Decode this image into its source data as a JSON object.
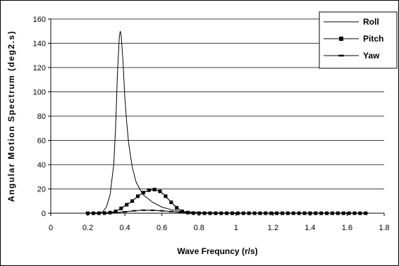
{
  "chart_data": {
    "type": "line",
    "title": "",
    "xlabel": "Wave Frequncy (r/s)",
    "ylabel": "Angular Motion Spectrum (deg2.s)",
    "xlim": [
      0,
      1.8
    ],
    "ylim": [
      0,
      160
    ],
    "xticks": [
      0,
      0.2,
      0.4,
      0.6,
      0.8,
      1,
      1.2,
      1.4,
      1.6,
      1.8
    ],
    "xtick_labels": [
      "0",
      "0.2",
      "0.4",
      "0.6",
      "0.8",
      "1",
      "1.2",
      "1.4",
      "1.6",
      "1.8"
    ],
    "yticks": [
      0,
      20,
      40,
      60,
      80,
      100,
      120,
      140,
      160
    ],
    "ytick_labels": [
      "0",
      "20",
      "40",
      "60",
      "80",
      "100",
      "120",
      "140",
      "160"
    ],
    "grid": "horizontal",
    "legend_position": "top-right",
    "series": [
      {
        "name": "Roll",
        "marker": "none",
        "color": "#000000",
        "x": [
          0.2,
          0.25,
          0.28,
          0.3,
          0.32,
          0.34,
          0.35,
          0.36,
          0.37,
          0.375,
          0.38,
          0.39,
          0.4,
          0.41,
          0.42,
          0.44,
          0.46,
          0.48,
          0.5,
          0.55,
          0.6,
          0.65,
          0.7,
          0.8,
          1.0,
          1.2,
          1.4,
          1.6,
          1.7
        ],
        "values": [
          0,
          0.3,
          1,
          5,
          15,
          40,
          70,
          115,
          145,
          150,
          147,
          125,
          95,
          75,
          58,
          38,
          26,
          20,
          15,
          9,
          5,
          3,
          1.5,
          0.5,
          0.1,
          0,
          0,
          0,
          0
        ]
      },
      {
        "name": "Pitch",
        "marker": "square",
        "color": "#000000",
        "x": [
          0.2,
          0.23,
          0.26,
          0.29,
          0.32,
          0.35,
          0.38,
          0.41,
          0.44,
          0.47,
          0.5,
          0.53,
          0.56,
          0.59,
          0.62,
          0.65,
          0.68,
          0.71,
          0.74,
          0.77,
          0.8,
          0.83,
          0.86,
          0.89,
          0.92,
          0.95,
          0.98,
          1.01,
          1.04,
          1.07,
          1.1,
          1.13,
          1.16,
          1.19,
          1.22,
          1.25,
          1.28,
          1.31,
          1.34,
          1.37,
          1.4,
          1.43,
          1.46,
          1.49,
          1.52,
          1.55,
          1.58,
          1.61,
          1.64,
          1.67,
          1.7
        ],
        "values": [
          0,
          0,
          0,
          0.1,
          0.5,
          1.5,
          4,
          7,
          10,
          14,
          17,
          19,
          19.5,
          18,
          14,
          9,
          4.5,
          1.5,
          0.5,
          0.1,
          0,
          0,
          0,
          0,
          0,
          0,
          0,
          0,
          0,
          0,
          0,
          0,
          0,
          0,
          0,
          0,
          0,
          0,
          0,
          0,
          0,
          0,
          0,
          0,
          0,
          0,
          0,
          0,
          0,
          0,
          0
        ]
      },
      {
        "name": "Yaw",
        "marker": "dash",
        "color": "#000000",
        "x": [
          0.2,
          0.25,
          0.3,
          0.35,
          0.4,
          0.45,
          0.5,
          0.55,
          0.6,
          0.65,
          0.7,
          0.75,
          0.8,
          1.0,
          1.2,
          1.4,
          1.6,
          1.7
        ],
        "values": [
          0,
          0,
          0.2,
          0.6,
          1.2,
          2,
          2.5,
          2.4,
          2,
          1.4,
          0.7,
          0.2,
          0,
          0,
          0,
          0,
          0,
          0
        ]
      }
    ]
  }
}
